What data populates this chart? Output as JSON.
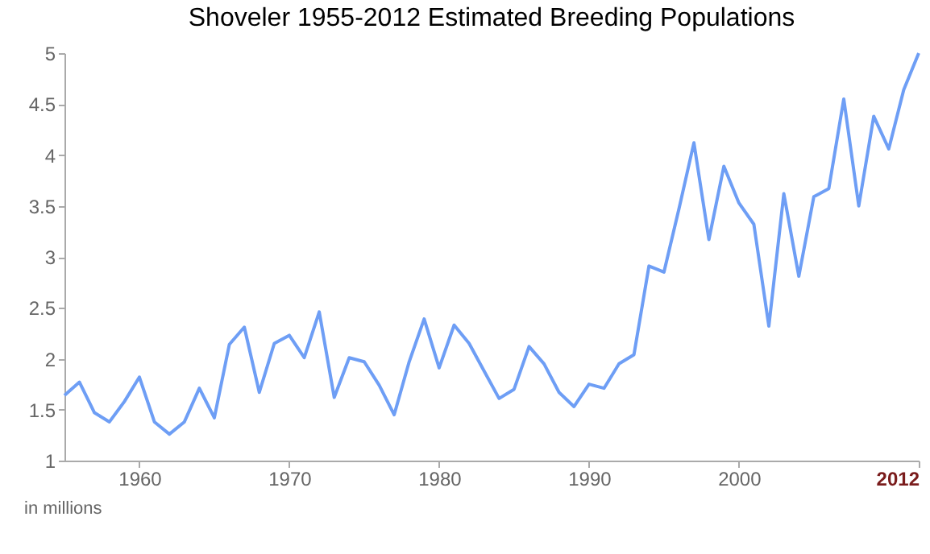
{
  "chart_data": {
    "type": "line",
    "title": "Shoveler 1955-2012 Estimated Breeding Populations",
    "annotations": [
      "in millions"
    ],
    "x": [
      1955,
      1956,
      1957,
      1958,
      1959,
      1960,
      1961,
      1962,
      1963,
      1964,
      1965,
      1966,
      1967,
      1968,
      1969,
      1970,
      1971,
      1972,
      1973,
      1974,
      1975,
      1976,
      1977,
      1978,
      1979,
      1980,
      1981,
      1982,
      1983,
      1984,
      1985,
      1986,
      1987,
      1988,
      1989,
      1990,
      1991,
      1992,
      1993,
      1994,
      1995,
      1996,
      1997,
      1998,
      1999,
      2000,
      2001,
      2002,
      2003,
      2004,
      2005,
      2006,
      2007,
      2008,
      2009,
      2010,
      2011,
      2012
    ],
    "series": [
      {
        "color": "#6e9ef5",
        "values": [
          1.64,
          1.77,
          1.47,
          1.38,
          1.58,
          1.82,
          1.38,
          1.26,
          1.38,
          1.71,
          1.42,
          2.14,
          2.31,
          1.67,
          2.15,
          2.23,
          2.01,
          2.46,
          1.62,
          2.01,
          1.97,
          1.74,
          1.45,
          1.97,
          2.39,
          1.91,
          2.33,
          2.15,
          1.88,
          1.61,
          1.7,
          2.12,
          1.95,
          1.67,
          1.53,
          1.75,
          1.71,
          1.95,
          2.04,
          2.91,
          2.85,
          3.47,
          4.12,
          3.17,
          3.89,
          3.53,
          3.32,
          2.32,
          3.62,
          2.81,
          3.59,
          3.67,
          4.55,
          3.5,
          4.38,
          4.06,
          4.64,
          5.0
        ]
      }
    ],
    "xlim": [
      1955,
      2012
    ],
    "xticks": [
      1960,
      1970,
      1980,
      1990,
      2000,
      2012
    ],
    "ylim": [
      1,
      5
    ],
    "yticks": [
      1,
      1.5,
      2,
      2.5,
      3,
      3.5,
      4,
      4.5,
      5
    ],
    "grid": false,
    "legend": false,
    "marker": "none",
    "line_style": "solid"
  }
}
